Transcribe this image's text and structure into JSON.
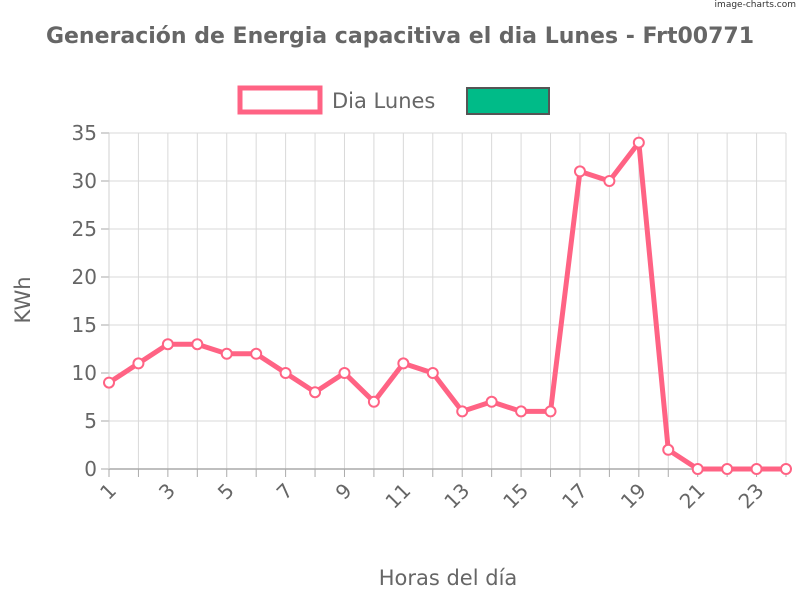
{
  "watermark": "image-charts.com",
  "chart_data": {
    "type": "line",
    "title": "Generación de Energia capacitiva el dia Lunes - Frt00771",
    "xlabel": "Horas del día",
    "ylabel": "KWh",
    "x": [
      1,
      2,
      3,
      4,
      5,
      6,
      7,
      8,
      9,
      10,
      11,
      12,
      13,
      14,
      15,
      16,
      17,
      18,
      19,
      20,
      21,
      22,
      23,
      24
    ],
    "x_tick_labels": [
      "1",
      "3",
      "5",
      "7",
      "9",
      "11",
      "13",
      "15",
      "17",
      "19",
      "21",
      "23"
    ],
    "ylim": [
      0,
      35
    ],
    "y_tick_labels": [
      "0",
      "5",
      "10",
      "15",
      "20",
      "25",
      "30",
      "35"
    ],
    "grid": true,
    "legend_position": "top",
    "series": [
      {
        "name": "Dia Lunes",
        "color": "#ff6384",
        "values": [
          9,
          11,
          13,
          13,
          12,
          12,
          10,
          8,
          10,
          7,
          11,
          10,
          6,
          7,
          6,
          6,
          31,
          30,
          34,
          2,
          0,
          0,
          0,
          0
        ]
      },
      {
        "name": "",
        "color": "#00bb88"
      }
    ]
  }
}
